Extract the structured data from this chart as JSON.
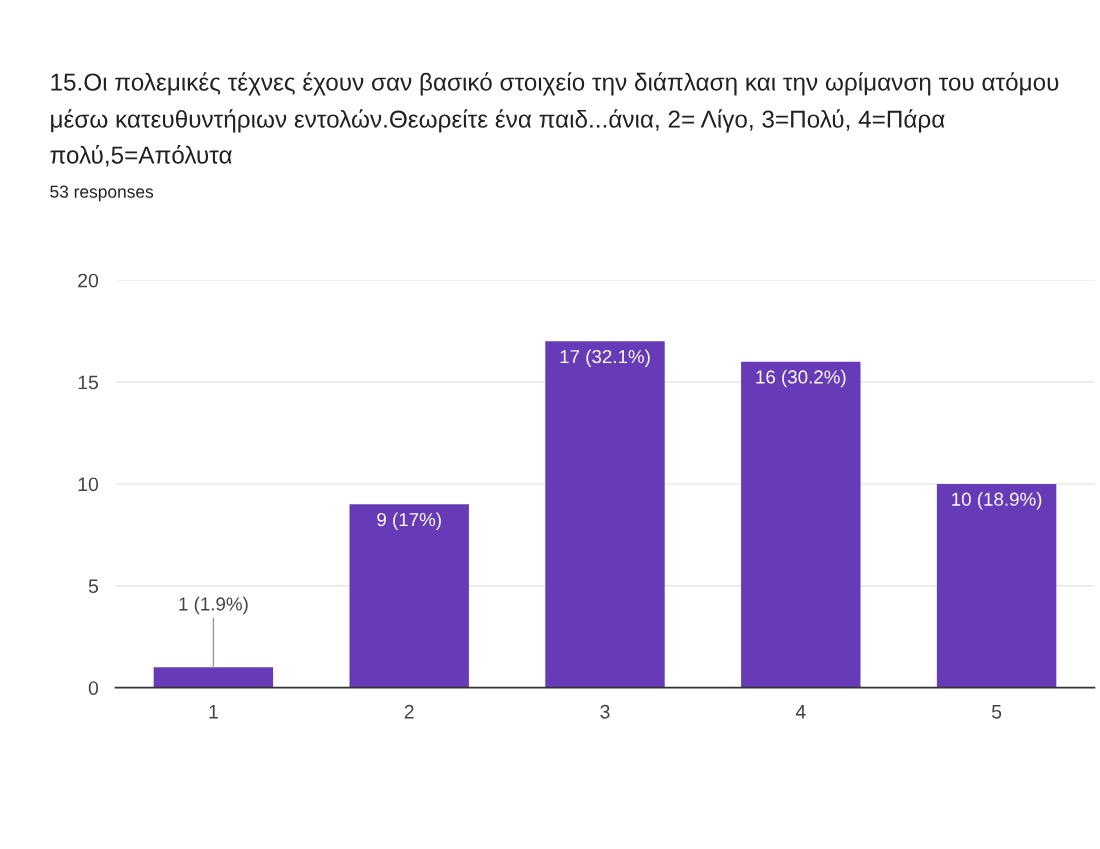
{
  "chart_data": {
    "type": "bar",
    "title": "15.Οι πολεμικές τέχνες έχουν σαν βασικό στοιχείο την διάπλαση και την ωρίμανση του ατόμου μέσω κατευθυντήριων εντολών.Θεωρείτε ένα παιδ...άνια, 2= Λίγο, 3=Πολύ, 4=Πάρα πολύ,5=Απόλυτα",
    "subtitle": "53 responses",
    "categories": [
      "1",
      "2",
      "3",
      "4",
      "5"
    ],
    "values": [
      1,
      9,
      17,
      16,
      10
    ],
    "value_labels": [
      "1 (1.9%)",
      "9 (17%)",
      "17 (32.1%)",
      "16 (30.2%)",
      "10 (18.9%)"
    ],
    "color": "#673ab7",
    "ylim": [
      0,
      20
    ],
    "yticks": [
      0,
      5,
      10,
      15,
      20
    ],
    "grid": "y",
    "legend": false
  }
}
